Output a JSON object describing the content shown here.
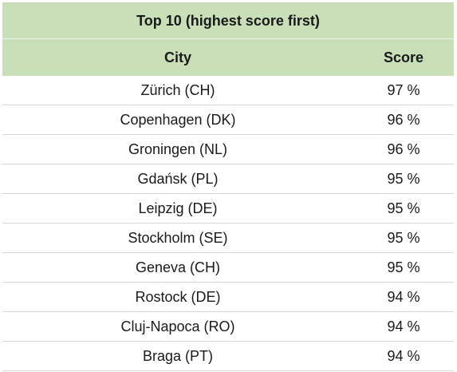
{
  "table": {
    "title": "Top 10 (highest score first)",
    "headers": {
      "city": "City",
      "score": "Score"
    },
    "rows": [
      {
        "city": "Zürich (CH)",
        "score": "97 %"
      },
      {
        "city": "Copenhagen (DK)",
        "score": "96 %"
      },
      {
        "city": "Groningen (NL)",
        "score": "96 %"
      },
      {
        "city": "Gdańsk (PL)",
        "score": "95 %"
      },
      {
        "city": "Leipzig (DE)",
        "score": "95 %"
      },
      {
        "city": "Stockholm (SE)",
        "score": "95 %"
      },
      {
        "city": "Geneva (CH)",
        "score": "95 %"
      },
      {
        "city": "Rostock (DE)",
        "score": "94 %"
      },
      {
        "city": "Cluj-Napoca (RO)",
        "score": "94 %"
      },
      {
        "city": "Braga (PT)",
        "score": "94 %"
      }
    ]
  },
  "colors": {
    "header_bg": "#c9dfb8",
    "row_divider": "#d6d6d6"
  }
}
